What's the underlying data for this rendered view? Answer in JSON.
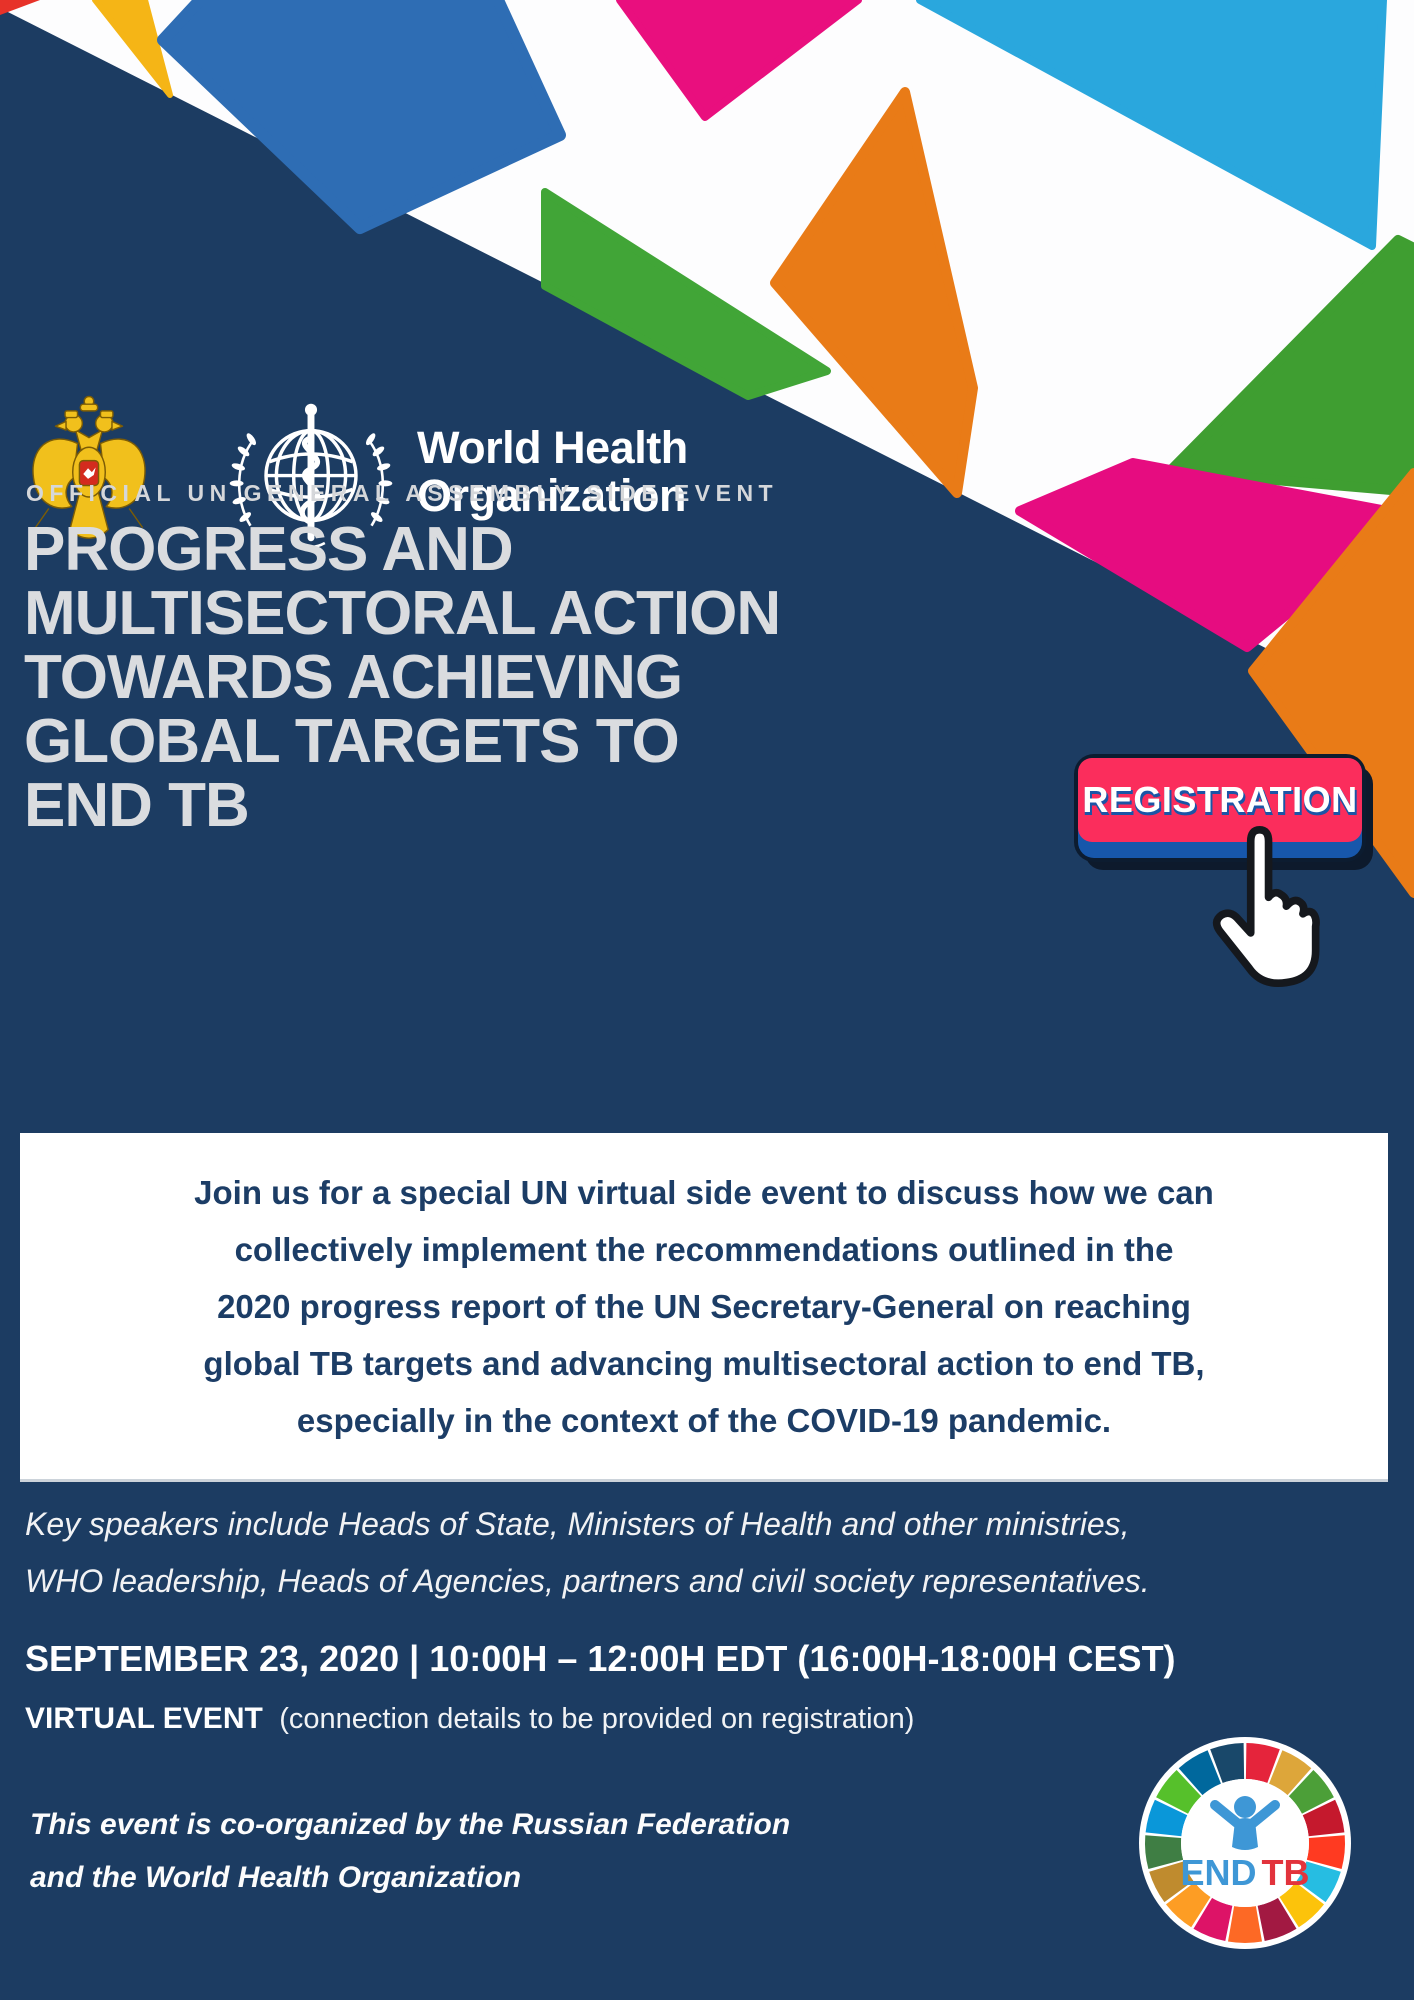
{
  "brand_colors": {
    "navy_background": "#1c3c62",
    "title_gray": "#dadcdf",
    "registration_pink": "#fb2d5c",
    "registration_blue": "#1757ab",
    "shape_magenta": "#e60c80",
    "shape_orange": "#e97b17",
    "shape_cyan": "#2aa7dd",
    "shape_green": "#41a537",
    "shape_blue": "#2e6db4",
    "shape_gold": "#f5b516",
    "shape_red": "#e73229",
    "endtb_blue": "#3e97d6",
    "endtb_red": "#e2333c"
  },
  "icons": {
    "russia_coat_of_arms": "russia-coat-of-arms",
    "who_emblem": "who-un-laurel-staff-emblem",
    "hand_cursor": "hand-pointer-cursor",
    "endtb_wheel": "sdg-color-wheel"
  },
  "logos": {
    "who_name_line1": "World Health",
    "who_name_line2": "Organization"
  },
  "kicker": "OFFICIAL UN GENERAL ASSEMBLY SIDE EVENT",
  "title": {
    "lines": [
      "PROGRESS AND",
      "MULTISECTORAL ACTION",
      "TOWARDS ACHIEVING",
      "GLOBAL TARGETS TO",
      "END TB"
    ]
  },
  "registration": {
    "label": "REGISTRATION"
  },
  "intro": {
    "lines": [
      "Join us for a special UN virtual side event to discuss how we can",
      "collectively implement the recommendations outlined in the",
      "2020 progress report of the UN Secretary-General on reaching",
      "global TB targets and advancing multisectoral action to end TB,",
      "especially in the context of the COVID-19 pandemic."
    ]
  },
  "speakers": {
    "lines": [
      "Key speakers include Heads of State, Ministers of Health and other ministries,",
      "WHO leadership, Heads of Agencies, partners and civil society representatives."
    ]
  },
  "schedule": {
    "date_line": "SEPTEMBER 23, 2020 | 10:00H – 12:00H EDT (16:00H-18:00H CEST)",
    "event_type": "VIRTUAL EVENT",
    "event_note": "(connection details to be provided on registration)"
  },
  "organizers": {
    "lines": [
      "This event is co-organized by the Russian Federation",
      "and the World Health Organization"
    ]
  },
  "endtb": {
    "end_label": "END",
    "tb_label": "TB",
    "wheel_colors": [
      "#E5243B",
      "#DDA63A",
      "#4C9F38",
      "#C5192D",
      "#FF3A21",
      "#26BDE2",
      "#FCC30B",
      "#A21942",
      "#FD6925",
      "#DD1367",
      "#FD9D24",
      "#BF8B2E",
      "#3F7E44",
      "#0A97D9",
      "#56C02B",
      "#00689D",
      "#19486A"
    ]
  }
}
